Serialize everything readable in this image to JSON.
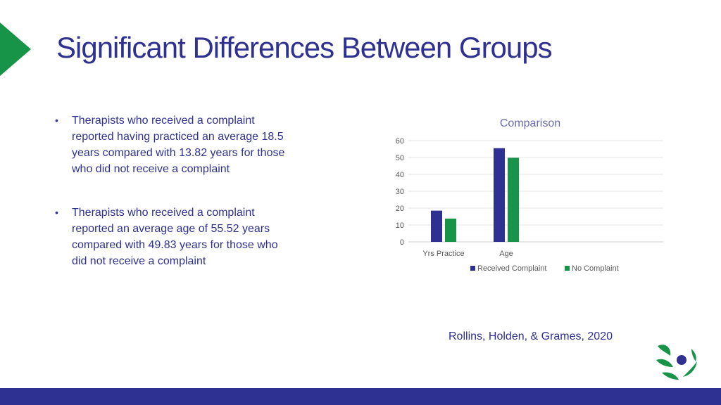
{
  "slide": {
    "title": "Significant Differences Between Groups",
    "bullets": [
      "Therapists who received a complaint reported having practiced an average 18.5 years compared with 13.82 years for those who did not receive a complaint",
      "Therapists who received a complaint reported an average age of 55.52 years compared with 49.83 years for those who did not receive a complaint"
    ],
    "citation": "Rollins, Holden, & Grames, 2020"
  },
  "colors": {
    "title": "#2e3192",
    "accent_green": "#179447",
    "footer": "#2e3192"
  },
  "icons": {
    "accent": "green-triangle-icon",
    "logo": "leaf-swirl-logo-icon"
  },
  "chart_data": {
    "type": "bar",
    "title": "Comparison",
    "categories": [
      "Yrs Practice",
      "Age"
    ],
    "series": [
      {
        "name": "Received Complaint",
        "values": [
          18.5,
          55.52
        ],
        "color": "#2e3192"
      },
      {
        "name": "No Complaint",
        "values": [
          13.82,
          49.83
        ],
        "color": "#179447"
      }
    ],
    "ylim": [
      0,
      60
    ],
    "yticks": [
      0,
      10,
      20,
      30,
      40,
      50,
      60
    ],
    "grid": true,
    "legend_position": "bottom"
  }
}
